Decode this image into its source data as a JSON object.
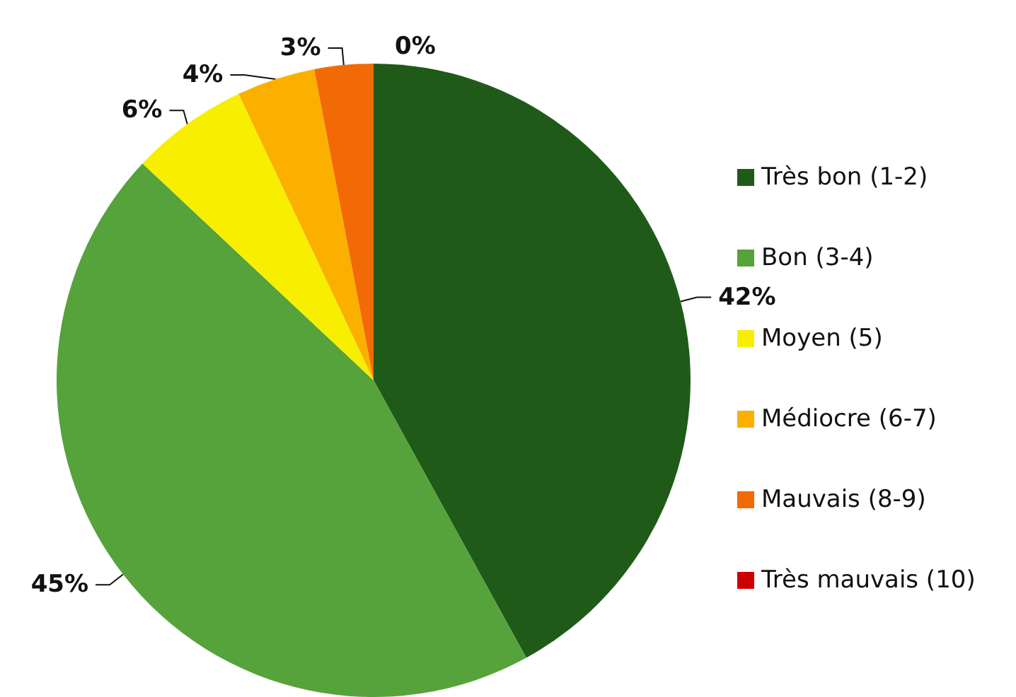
{
  "chart_data": {
    "type": "pie",
    "categories": [
      "Très bon (1-2)",
      "Bon (3-4)",
      "Moyen (5)",
      "Médiocre (6-7)",
      "Mauvais (8-9)",
      "Très mauvais (10)"
    ],
    "values": [
      42,
      45,
      6,
      4,
      3,
      0
    ],
    "colors": [
      "#1f5a19",
      "#55a33a",
      "#f8ee00",
      "#fbb000",
      "#f26a06",
      "#cc0000"
    ],
    "value_labels": [
      "42%",
      "45%",
      "6%",
      "4%",
      "3%",
      "0%"
    ],
    "legend": "right"
  }
}
